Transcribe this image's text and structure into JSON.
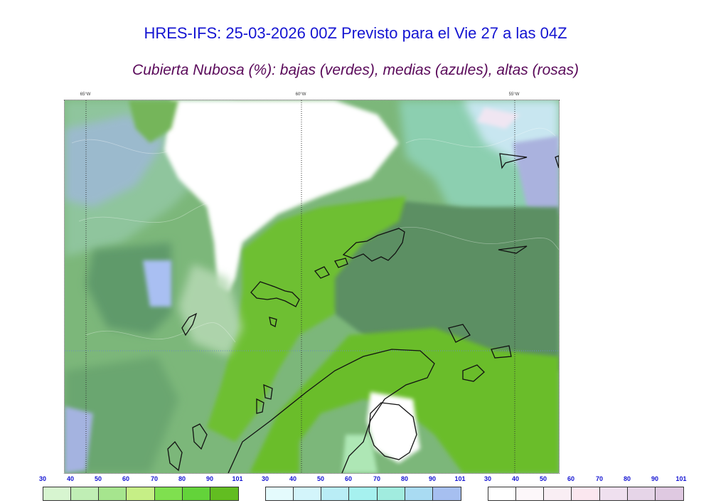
{
  "header": {
    "title": "HRES-IFS: 25-03-2026 00Z Previsto para el Vie 27 a las 04Z",
    "subtitle": "Cubierta Nubosa (%): bajas (verdes), medias (azules), altas (rosas)"
  },
  "map": {
    "longitude_labels": [
      "65°W",
      "60°W",
      "55°W"
    ],
    "colors": {
      "low_light": "#c9efc0",
      "low_mid": "#9edb86",
      "low_strong": "#6cc236",
      "low_dark": "#5a8f62",
      "mid_cloud": "#a8c4e8",
      "high_cloud": "#e6c8e6",
      "coastline": "#111111"
    }
  },
  "legends": [
    {
      "name": "low",
      "ticks": [
        "30",
        "40",
        "50",
        "60",
        "70",
        "80",
        "90",
        "101"
      ],
      "colors": [
        "#d7f5d0",
        "#c0eeb5",
        "#a6e58e",
        "#c6ef86",
        "#7fe04f",
        "#63d33a",
        "#62bd21"
      ]
    },
    {
      "name": "mid",
      "ticks": [
        "30",
        "40",
        "50",
        "60",
        "70",
        "80",
        "90",
        "101"
      ],
      "colors": [
        "#e4fbfd",
        "#d3f5fb",
        "#b9edf6",
        "#a6f1ef",
        "#a1ecdf",
        "#a9dbf2",
        "#a6bff0"
      ]
    },
    {
      "name": "high",
      "ticks": [
        "30",
        "40",
        "50",
        "60",
        "70",
        "80",
        "90",
        "101"
      ],
      "colors": [
        "#ffffff",
        "#fdf7fa",
        "#f9eef4",
        "#fbe7ef",
        "#efe0ef",
        "#e6d5e8",
        "#dfc9e1"
      ]
    }
  ]
}
